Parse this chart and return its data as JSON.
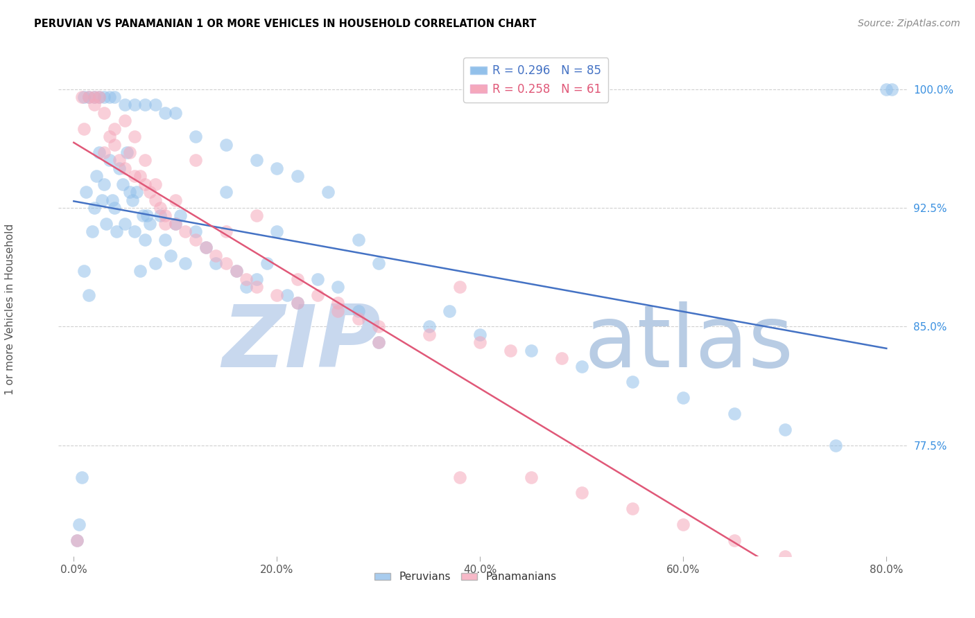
{
  "title": "PERUVIAN VS PANAMANIAN 1 OR MORE VEHICLES IN HOUSEHOLD CORRELATION CHART",
  "source": "Source: ZipAtlas.com",
  "ylabel": "1 or more Vehicles in Household",
  "r_peruvian": 0.296,
  "n_peruvian": 85,
  "r_panamanian": 0.258,
  "n_panamanian": 61,
  "yticks": [
    77.5,
    85.0,
    92.5,
    100.0
  ],
  "xticks": [
    0.0,
    20.0,
    40.0,
    60.0,
    80.0
  ],
  "ytick_labels": [
    "77.5%",
    "85.0%",
    "92.5%",
    "100.0%"
  ],
  "xtick_labels": [
    "0.0%",
    "20.0%",
    "40.0%",
    "60.0%",
    "80.0%"
  ],
  "color_peruvian": "#92c0ea",
  "color_panamanian": "#f5a8bb",
  "line_color_peruvian": "#4472c4",
  "line_color_panamanian": "#e05878",
  "watermark_zip": "ZIP",
  "watermark_atlas": "atlas",
  "watermark_color_zip": "#c8d8ee",
  "watermark_color_atlas": "#b8cce4",
  "xlim_min": -1.5,
  "xlim_max": 82,
  "ylim_min": 70.5,
  "ylim_max": 102.5,
  "peru_x": [
    0.3,
    0.5,
    0.8,
    1.0,
    1.2,
    1.5,
    1.8,
    2.0,
    2.2,
    2.5,
    2.8,
    3.0,
    3.2,
    3.5,
    3.8,
    4.0,
    4.2,
    4.5,
    4.8,
    5.0,
    5.2,
    5.5,
    5.8,
    6.0,
    6.2,
    6.5,
    6.8,
    7.0,
    7.2,
    7.5,
    8.0,
    8.5,
    9.0,
    9.5,
    10.0,
    10.5,
    11.0,
    12.0,
    13.0,
    14.0,
    15.0,
    16.0,
    17.0,
    18.0,
    19.0,
    20.0,
    21.0,
    22.0,
    24.0,
    26.0,
    28.0,
    30.0,
    35.0,
    37.0,
    40.0,
    45.0,
    50.0,
    55.0,
    60.0,
    65.0,
    70.0,
    75.0,
    80.0,
    1.0,
    1.5,
    2.0,
    2.5,
    3.0,
    3.5,
    4.0,
    5.0,
    6.0,
    7.0,
    8.0,
    9.0,
    10.0,
    12.0,
    15.0,
    18.0,
    20.0,
    22.0,
    25.0,
    28.0,
    30.0,
    80.5
  ],
  "peru_y": [
    71.5,
    72.5,
    75.5,
    88.5,
    93.5,
    87.0,
    91.0,
    92.5,
    94.5,
    96.0,
    93.0,
    94.0,
    91.5,
    95.5,
    93.0,
    92.5,
    91.0,
    95.0,
    94.0,
    91.5,
    96.0,
    93.5,
    93.0,
    91.0,
    93.5,
    88.5,
    92.0,
    90.5,
    92.0,
    91.5,
    89.0,
    92.0,
    90.5,
    89.5,
    91.5,
    92.0,
    89.0,
    91.0,
    90.0,
    89.0,
    93.5,
    88.5,
    87.5,
    88.0,
    89.0,
    91.0,
    87.0,
    86.5,
    88.0,
    87.5,
    86.0,
    84.0,
    85.0,
    86.0,
    84.5,
    83.5,
    82.5,
    81.5,
    80.5,
    79.5,
    78.5,
    77.5,
    100.0,
    99.5,
    99.5,
    99.5,
    99.5,
    99.5,
    99.5,
    99.5,
    99.0,
    99.0,
    99.0,
    99.0,
    98.5,
    98.5,
    97.0,
    96.5,
    95.5,
    95.0,
    94.5,
    93.5,
    90.5,
    89.0,
    100.0
  ],
  "pan_x": [
    0.3,
    0.8,
    1.0,
    1.5,
    2.0,
    2.5,
    3.0,
    3.5,
    4.0,
    4.5,
    5.0,
    5.5,
    6.0,
    6.5,
    7.0,
    7.5,
    8.0,
    8.5,
    9.0,
    10.0,
    11.0,
    12.0,
    13.0,
    14.0,
    15.0,
    16.0,
    17.0,
    18.0,
    20.0,
    22.0,
    24.0,
    26.0,
    28.0,
    30.0,
    35.0,
    38.0,
    40.0,
    43.0,
    48.0,
    2.0,
    3.0,
    4.0,
    5.0,
    6.0,
    7.0,
    8.0,
    9.0,
    10.0,
    12.0,
    15.0,
    18.0,
    22.0,
    26.0,
    30.0,
    38.0,
    45.0,
    50.0,
    55.0,
    60.0,
    65.0,
    70.0
  ],
  "pan_y": [
    71.5,
    99.5,
    97.5,
    99.5,
    99.5,
    99.5,
    98.5,
    97.0,
    96.5,
    95.5,
    95.0,
    96.0,
    94.5,
    94.5,
    94.0,
    93.5,
    93.0,
    92.5,
    92.0,
    91.5,
    91.0,
    90.5,
    90.0,
    89.5,
    89.0,
    88.5,
    88.0,
    87.5,
    87.0,
    86.5,
    87.0,
    86.0,
    85.5,
    85.0,
    84.5,
    87.5,
    84.0,
    83.5,
    83.0,
    99.0,
    96.0,
    97.5,
    98.0,
    97.0,
    95.5,
    94.0,
    91.5,
    93.0,
    95.5,
    91.0,
    92.0,
    88.0,
    86.5,
    84.0,
    75.5,
    75.5,
    74.5,
    73.5,
    72.5,
    71.5,
    70.5
  ]
}
